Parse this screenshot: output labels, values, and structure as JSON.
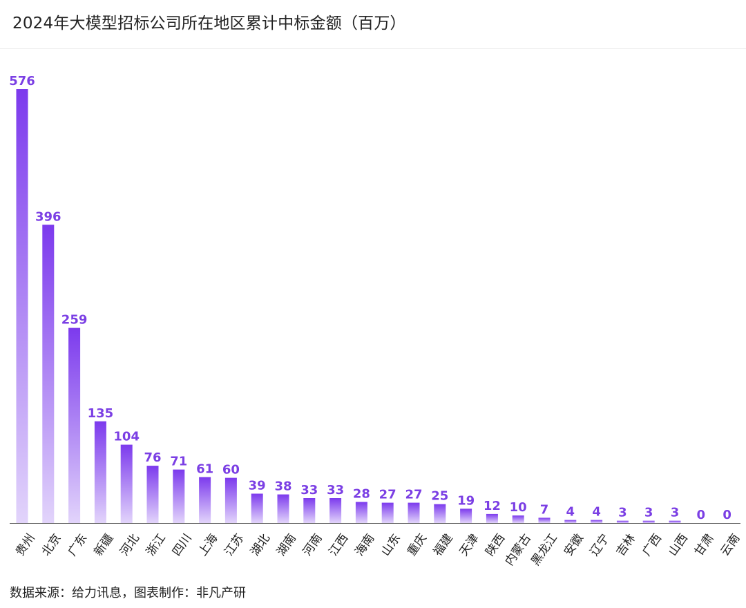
{
  "title": "2024年大模型招标公司所在地区累计中标金额（百万）",
  "source": "数据来源：给力讯息，图表制作：非凡产研",
  "colors": {
    "bar_top": "#7c3aed",
    "bar_bottom": "#e2d4fb",
    "label": "#7b3fe4",
    "axis": "#555555"
  },
  "chart_data": {
    "type": "bar",
    "title": "2024年大模型招标公司所在地区累计中标金额（百万）",
    "xlabel": "",
    "ylabel": "",
    "ylim": [
      0,
      576
    ],
    "grid": false,
    "categories": [
      "贵州",
      "北京",
      "广东",
      "新疆",
      "河北",
      "浙江",
      "四川",
      "上海",
      "江苏",
      "湖北",
      "湖南",
      "河南",
      "江西",
      "海南",
      "山东",
      "重庆",
      "福建",
      "天津",
      "陕西",
      "内蒙古",
      "黑龙江",
      "安徽",
      "辽宁",
      "吉林",
      "广西",
      "山西",
      "甘肃",
      "云南"
    ],
    "values": [
      576,
      396,
      259,
      135,
      104,
      76,
      71,
      61,
      60,
      39,
      38,
      33,
      33,
      28,
      27,
      27,
      25,
      19,
      12,
      10,
      7,
      4,
      4,
      3,
      3,
      3,
      0,
      0
    ]
  }
}
